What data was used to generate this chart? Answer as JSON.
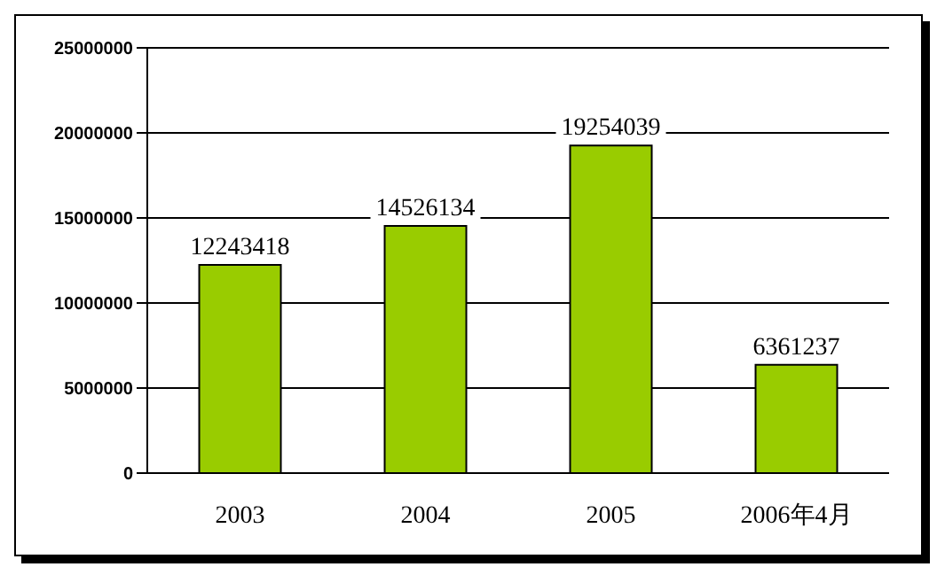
{
  "chart_data": {
    "type": "bar",
    "categories": [
      "2003",
      "2004",
      "2005",
      "2006年4月"
    ],
    "values": [
      12243418,
      14526134,
      19254039,
      6361237
    ],
    "color": "#99cc00",
    "ylim": [
      0,
      25000000
    ],
    "yticks": [
      0,
      5000000,
      10000000,
      15000000,
      20000000,
      25000000
    ],
    "grid": "y",
    "data_labels": true
  }
}
